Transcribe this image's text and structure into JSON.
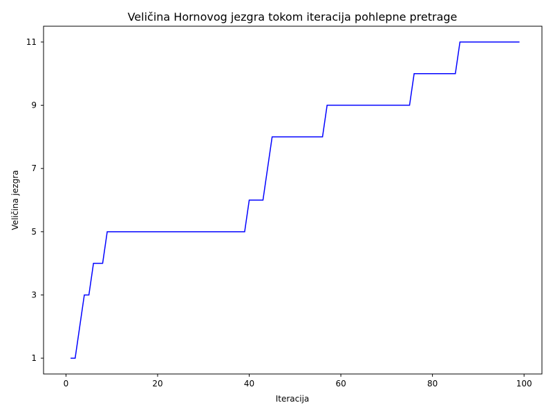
{
  "chart_data": {
    "type": "line",
    "title": "Veličina Hornovog jezgra tokom iteracija pohlepne pretrage",
    "xlabel": "Iteracija",
    "ylabel": "Veličina jezgra",
    "xlim": [
      -4.9,
      103.9
    ],
    "ylim": [
      0.5,
      11.5
    ],
    "x_ticks": [
      0,
      20,
      40,
      60,
      80,
      100
    ],
    "y_ticks": [
      1,
      3,
      5,
      7,
      9,
      11
    ],
    "grid": false,
    "legend": "none",
    "series": [
      {
        "color": "#0000ff",
        "x": [
          1,
          2,
          3,
          4,
          5,
          6,
          7,
          8,
          9,
          10,
          11,
          12,
          13,
          14,
          15,
          16,
          17,
          18,
          19,
          20,
          21,
          22,
          23,
          24,
          25,
          26,
          27,
          28,
          29,
          30,
          31,
          32,
          33,
          34,
          35,
          36,
          37,
          38,
          39,
          40,
          41,
          42,
          43,
          44,
          45,
          46,
          47,
          48,
          49,
          50,
          51,
          52,
          53,
          54,
          55,
          56,
          57,
          58,
          59,
          60,
          61,
          62,
          63,
          64,
          65,
          66,
          67,
          68,
          69,
          70,
          71,
          72,
          73,
          74,
          75,
          76,
          77,
          78,
          79,
          80,
          81,
          82,
          83,
          84,
          85,
          86,
          87,
          88,
          89,
          90,
          91,
          92,
          93,
          94,
          95,
          96,
          97,
          98,
          99
        ],
        "y": [
          1,
          1,
          2,
          3,
          3,
          4,
          4,
          4,
          5,
          5,
          5,
          5,
          5,
          5,
          5,
          5,
          5,
          5,
          5,
          5,
          5,
          5,
          5,
          5,
          5,
          5,
          5,
          5,
          5,
          5,
          5,
          5,
          5,
          5,
          5,
          5,
          5,
          5,
          5,
          6,
          6,
          6,
          6,
          7,
          8,
          8,
          8,
          8,
          8,
          8,
          8,
          8,
          8,
          8,
          8,
          8,
          9,
          9,
          9,
          9,
          9,
          9,
          9,
          9,
          9,
          9,
          9,
          9,
          9,
          9,
          9,
          9,
          9,
          9,
          9,
          10,
          10,
          10,
          10,
          10,
          10,
          10,
          10,
          10,
          10,
          11,
          11,
          11,
          11,
          11,
          11,
          11,
          11,
          11,
          11,
          11,
          11,
          11,
          11
        ]
      }
    ]
  }
}
